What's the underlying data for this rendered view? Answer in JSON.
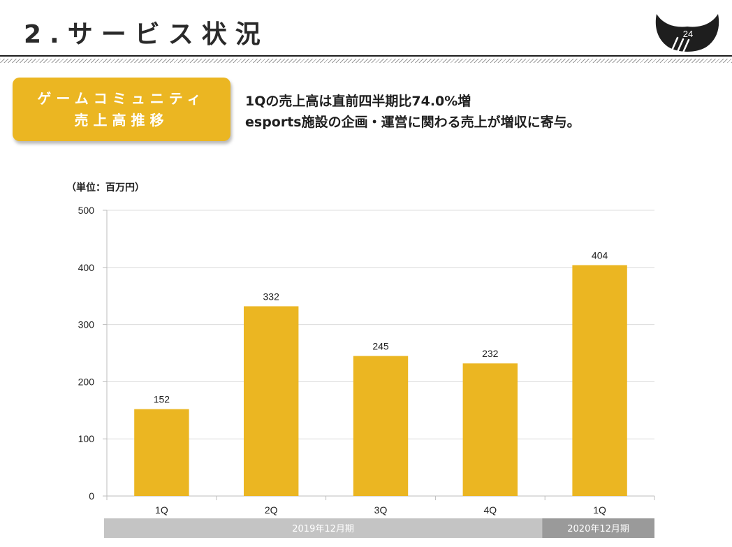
{
  "header": {
    "title": "2.サービス状況",
    "page_number": "24"
  },
  "badge": {
    "line1": "ゲームコミュニティ",
    "line2": "売上高推移",
    "color": "#ebb622"
  },
  "description": {
    "line1": "1Qの売上高は直前四半期比74.0%増",
    "line2": "esports施設の企画・運営に関わる売上が増収に寄与。"
  },
  "chart_data": {
    "type": "bar",
    "unit_label": "（単位：百万円）",
    "categories": [
      "1Q",
      "2Q",
      "3Q",
      "4Q",
      "1Q"
    ],
    "values": [
      152,
      332,
      245,
      232,
      404
    ],
    "ylim": [
      0,
      500
    ],
    "yticks": [
      0,
      100,
      200,
      300,
      400,
      500
    ],
    "grid": true,
    "bar_color": "#ebb622",
    "periods": [
      {
        "label": "2019年12月期",
        "start": 0,
        "end": 4,
        "color": "#c4c4c4"
      },
      {
        "label": "2020年12月期",
        "start": 4,
        "end": 5,
        "color": "#9a9a9a"
      }
    ]
  }
}
